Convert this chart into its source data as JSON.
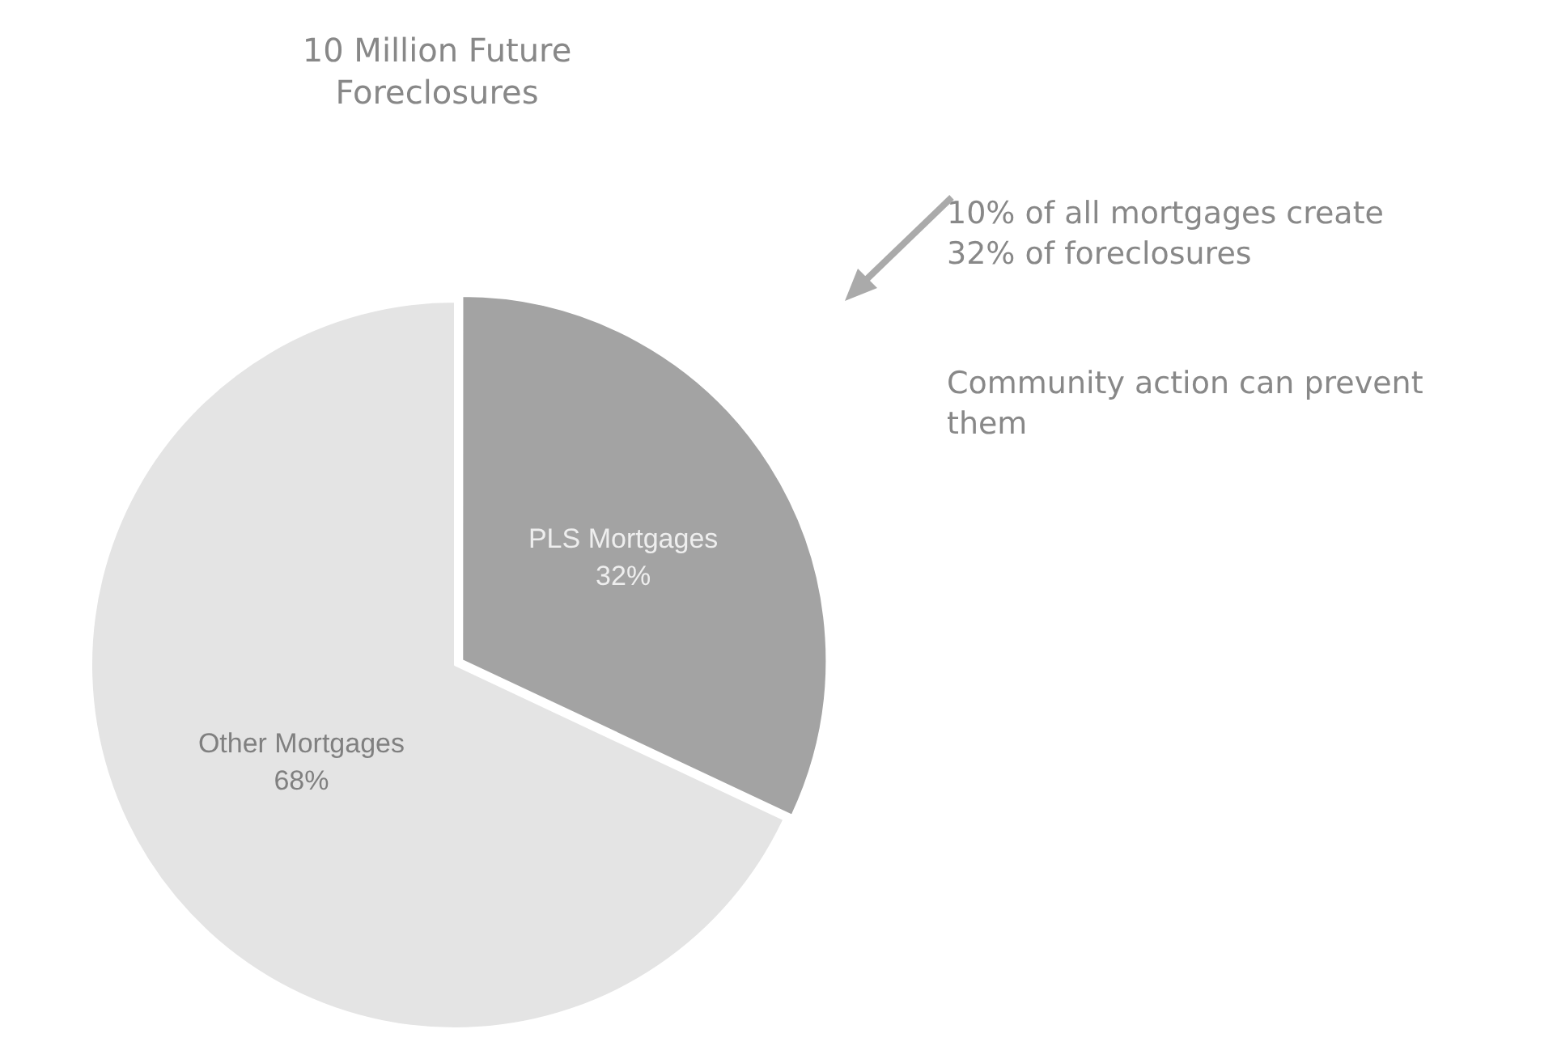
{
  "chart_data": {
    "type": "pie",
    "title": "10 Million Future Foreclosures",
    "categories": [
      "PLS Mortgages",
      "Other Mortgages"
    ],
    "values": [
      32,
      68
    ],
    "colors": [
      "#a3a3a3",
      "#e4e4e4"
    ],
    "value_labels": [
      "32%",
      "68%"
    ],
    "legend": false,
    "annotations": [
      "10% of all mortgages create 32% of foreclosures",
      "Community action can prevent them"
    ]
  }
}
